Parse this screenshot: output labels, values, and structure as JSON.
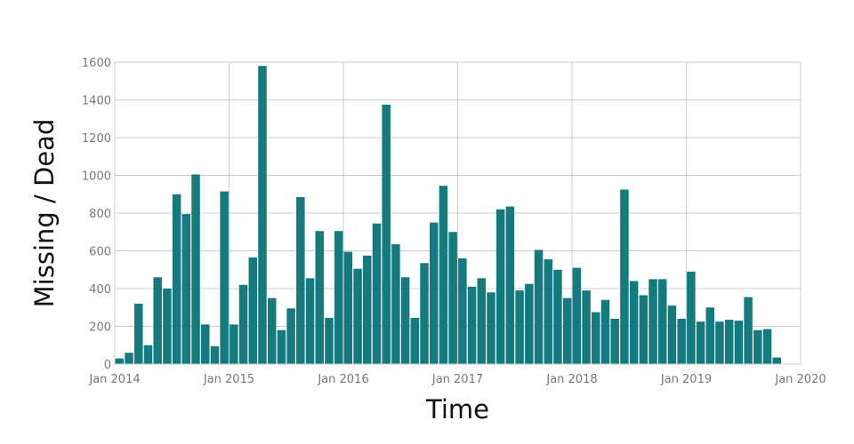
{
  "chart_data": {
    "type": "bar",
    "xlabel": "Time",
    "ylabel": "Missing / Dead",
    "ylim": [
      0,
      1600
    ],
    "yticks": [
      0,
      200,
      400,
      600,
      800,
      1000,
      1200,
      1400,
      1600
    ],
    "xlim": [
      "2014-01",
      "2020-01"
    ],
    "xticks": [
      {
        "date": "2014-01",
        "label": "Jan 2014"
      },
      {
        "date": "2015-01",
        "label": "Jan 2015"
      },
      {
        "date": "2016-01",
        "label": "Jan 2016"
      },
      {
        "date": "2017-01",
        "label": "Jan 2017"
      },
      {
        "date": "2018-01",
        "label": "Jan 2018"
      },
      {
        "date": "2019-01",
        "label": "Jan 2019"
      },
      {
        "date": "2020-01",
        "label": "Jan 2020"
      }
    ],
    "grid": true,
    "bar_color": "#157a7e",
    "series": [
      {
        "x": [
          "2014-01",
          "2014-02",
          "2014-03",
          "2014-04",
          "2014-05",
          "2014-06",
          "2014-07",
          "2014-08",
          "2014-09",
          "2014-10",
          "2014-11",
          "2014-12",
          "2015-01",
          "2015-02",
          "2015-03",
          "2015-04",
          "2015-05",
          "2015-06",
          "2015-07",
          "2015-08",
          "2015-09",
          "2015-10",
          "2015-11",
          "2015-12",
          "2016-01",
          "2016-02",
          "2016-03",
          "2016-04",
          "2016-05",
          "2016-06",
          "2016-07",
          "2016-08",
          "2016-09",
          "2016-10",
          "2016-11",
          "2016-12",
          "2017-01",
          "2017-02",
          "2017-03",
          "2017-04",
          "2017-05",
          "2017-06",
          "2017-07",
          "2017-08",
          "2017-09",
          "2017-10",
          "2017-11",
          "2017-12",
          "2018-01",
          "2018-02",
          "2018-03",
          "2018-04",
          "2018-05",
          "2018-06",
          "2018-07",
          "2018-08",
          "2018-09",
          "2018-10",
          "2018-11",
          "2018-12",
          "2019-01",
          "2019-02",
          "2019-03",
          "2019-04",
          "2019-05",
          "2019-06",
          "2019-07",
          "2019-08",
          "2019-09",
          "2019-10",
          "2019-11",
          "2019-12"
        ],
        "values": [
          30,
          60,
          320,
          100,
          460,
          400,
          900,
          795,
          1005,
          210,
          95,
          915,
          210,
          420,
          565,
          1580,
          350,
          180,
          295,
          885,
          455,
          705,
          245,
          705,
          595,
          505,
          575,
          745,
          1375,
          635,
          460,
          245,
          535,
          750,
          945,
          700,
          560,
          410,
          455,
          380,
          820,
          835,
          390,
          425,
          605,
          555,
          500,
          350,
          510,
          390,
          275,
          340,
          240,
          925,
          440,
          365,
          450,
          450,
          310,
          240,
          490,
          225,
          300,
          225,
          235,
          230,
          355,
          180,
          185,
          35,
          0,
          0
        ]
      }
    ]
  }
}
